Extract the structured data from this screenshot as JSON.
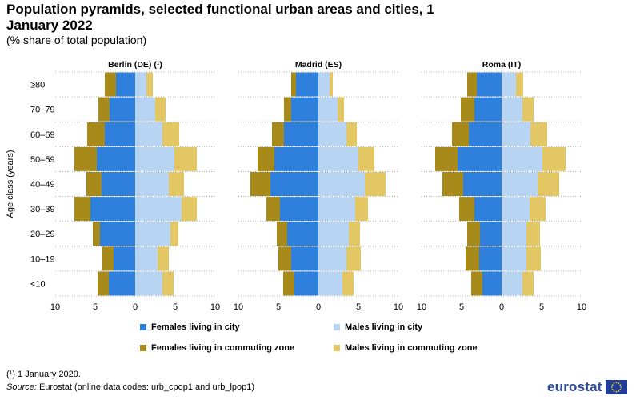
{
  "title": "Population pyramids, selected functional urban areas and cities, 1 January 2022",
  "subtitle": "(% share of total population)",
  "footnote": "(¹) 1 January 2020.",
  "source_label": "Source:",
  "source_text": " Eurostat (online data codes: urb_cpop1 and urb_lpop1)",
  "logo_text": "eurostat",
  "colors": {
    "females_city": "#2f7fdd",
    "males_city": "#b8d4f3",
    "females_commuting": "#a88a1a",
    "males_commuting": "#e4c765",
    "gridline": "#b0b0b0"
  },
  "chart_data": {
    "type": "bar",
    "orientation": "horizontal-pyramid",
    "y_axis_label": "Age class (years)",
    "age_classes": [
      "≥80",
      "70–79",
      "60–69",
      "50–59",
      "40–49",
      "30–39",
      "20–29",
      "10–19",
      "<10"
    ],
    "x_tick_labels": [
      "10",
      "5",
      "0",
      "5",
      "10"
    ],
    "x_range": [
      -10,
      10
    ],
    "legend": [
      {
        "key": "females_city",
        "label": "Females living in city"
      },
      {
        "key": "males_city",
        "label": "Males living in city"
      },
      {
        "key": "females_commuting",
        "label": "Females living in commuting zone"
      },
      {
        "key": "males_commuting",
        "label": "Males living in commuting zone"
      }
    ],
    "panels": [
      {
        "name": "Berlin (DE) (¹)",
        "females_city": [
          2.4,
          3.2,
          3.8,
          4.8,
          4.2,
          5.6,
          4.4,
          2.7,
          3.3
        ],
        "females_commuting": [
          1.4,
          1.4,
          2.2,
          2.8,
          1.9,
          2.0,
          0.9,
          1.4,
          1.4
        ],
        "males_city": [
          1.4,
          2.5,
          3.4,
          4.9,
          4.2,
          5.8,
          4.4,
          2.8,
          3.4
        ],
        "males_commuting": [
          0.8,
          1.3,
          2.1,
          2.8,
          1.9,
          1.9,
          1.0,
          1.4,
          1.4
        ]
      },
      {
        "name": "Madrid (ES)",
        "females_city": [
          2.8,
          3.4,
          4.3,
          5.5,
          6.0,
          4.8,
          3.9,
          3.4,
          3.0
        ],
        "females_commuting": [
          0.6,
          0.9,
          1.5,
          2.1,
          2.5,
          1.7,
          1.3,
          1.6,
          1.4
        ],
        "males_city": [
          1.4,
          2.4,
          3.5,
          5.0,
          5.8,
          4.6,
          3.8,
          3.5,
          3.0
        ],
        "males_commuting": [
          0.4,
          0.8,
          1.3,
          2.0,
          2.6,
          1.6,
          1.4,
          1.8,
          1.4
        ]
      },
      {
        "name": "Roma (IT)",
        "females_city": [
          3.1,
          3.4,
          4.1,
          5.5,
          4.8,
          3.4,
          2.7,
          2.8,
          2.4
        ],
        "females_commuting": [
          1.2,
          1.7,
          2.1,
          2.8,
          2.6,
          1.9,
          1.6,
          1.7,
          1.4
        ],
        "males_city": [
          1.8,
          2.6,
          3.6,
          5.1,
          4.5,
          3.5,
          3.1,
          3.1,
          2.6
        ],
        "males_commuting": [
          0.9,
          1.4,
          2.1,
          2.9,
          2.7,
          2.0,
          1.7,
          1.8,
          1.4
        ]
      }
    ]
  }
}
